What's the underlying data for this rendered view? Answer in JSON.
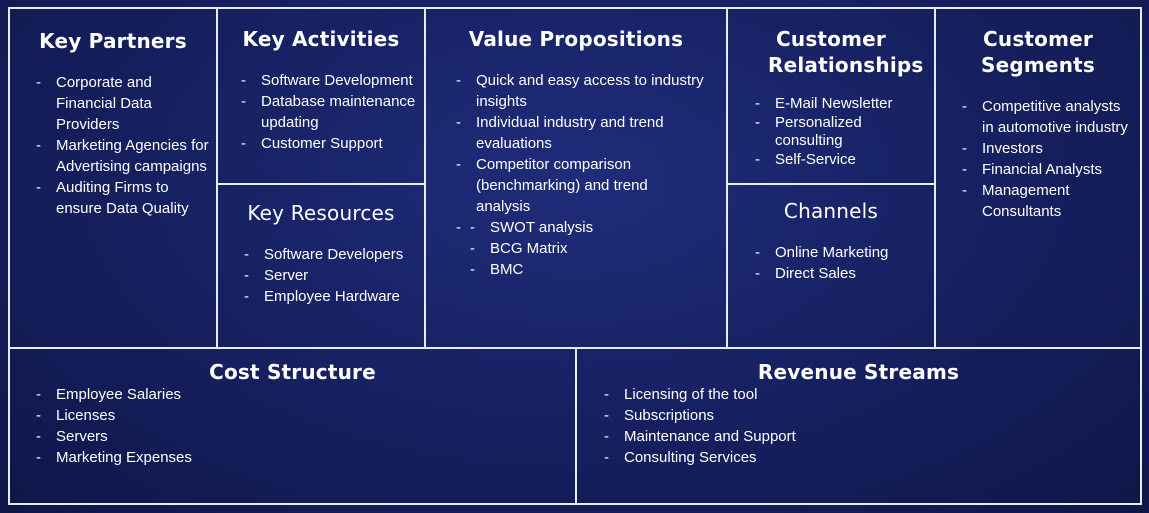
{
  "key_partners": {
    "title": "Key Partners",
    "items": [
      "Corporate and Financial Data Providers",
      "Marketing Agencies for Advertising campaigns",
      "Auditing Firms to ensure Data Quality"
    ]
  },
  "key_activities": {
    "title": "Key Activities",
    "items": [
      "Software Development",
      "Database maintenance updating",
      "Customer Support"
    ]
  },
  "key_resources": {
    "title": "Key Resources",
    "items": [
      "Software Developers",
      "Server",
      "Employee Hardware"
    ]
  },
  "value_propositions": {
    "title": "Value Propositions",
    "items": [
      "Quick and easy access to industry insights",
      "Individual industry and trend evaluations",
      "Competitor comparison (benchmarking) and trend analysis"
    ],
    "sub_items": [
      "SWOT analysis",
      "BCG Matrix",
      "BMC"
    ]
  },
  "customer_relationships": {
    "title": "Customer Relationships",
    "items": [
      "E-Mail Newsletter",
      "Personalized consulting",
      "Self-Service"
    ]
  },
  "channels": {
    "title": "Channels",
    "items": [
      "Online Marketing",
      "Direct Sales"
    ]
  },
  "customer_segments": {
    "title": "Customer Segments",
    "items": [
      "Competitive analysts in automotive industry",
      "Investors",
      "Financial Analysts",
      "Management Consultants"
    ]
  },
  "cost_structure": {
    "title": "Cost Structure",
    "items": [
      "Employee Salaries",
      "Licenses",
      "Servers",
      "Marketing Expenses"
    ]
  },
  "revenue_streams": {
    "title": "Revenue Streams",
    "items": [
      "Licensing of the tool",
      "Subscriptions",
      "Maintenance and Support",
      "Consulting Services"
    ]
  }
}
